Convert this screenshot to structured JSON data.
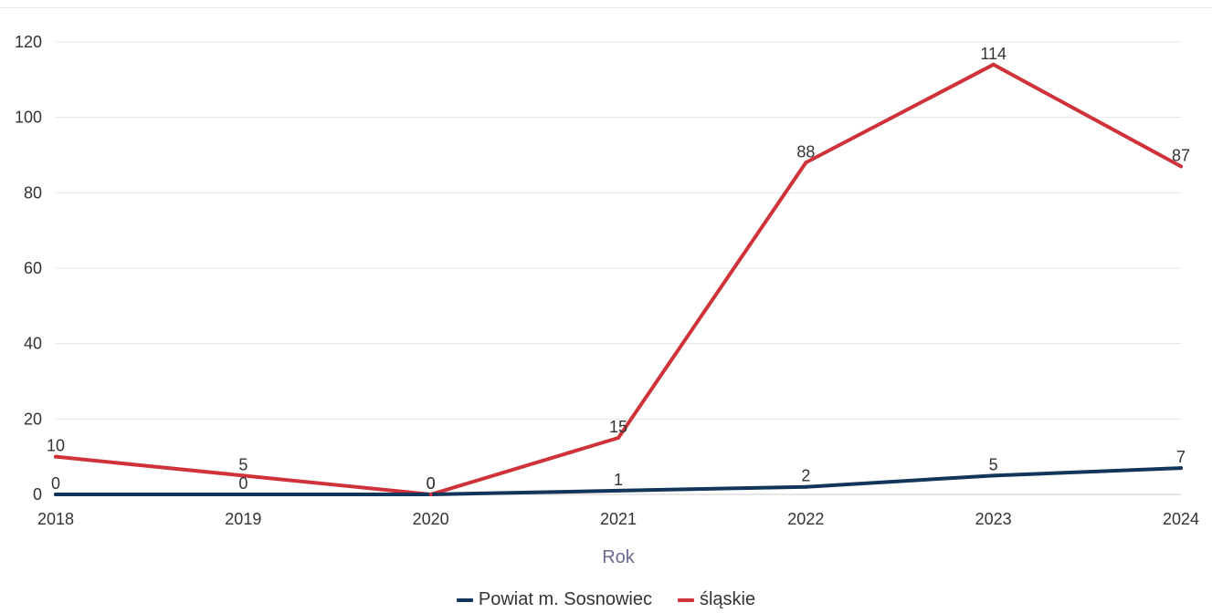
{
  "chart_data": {
    "type": "line",
    "title": "",
    "xlabel": "Rok",
    "ylabel": "",
    "x": [
      "2018",
      "2019",
      "2020",
      "2021",
      "2022",
      "2023",
      "2024"
    ],
    "ylim": [
      0,
      120
    ],
    "yticks": [
      0,
      20,
      40,
      60,
      80,
      100,
      120
    ],
    "grid": true,
    "legend_position": "bottom",
    "series": [
      {
        "name": "Powiat m. Sosnowiec",
        "color": "#12355b",
        "values": [
          0,
          0,
          0,
          1,
          2,
          5,
          7
        ]
      },
      {
        "name": "śląskie",
        "color": "#cf3339",
        "values": [
          10,
          5,
          0,
          15,
          88,
          114,
          87
        ]
      }
    ]
  }
}
